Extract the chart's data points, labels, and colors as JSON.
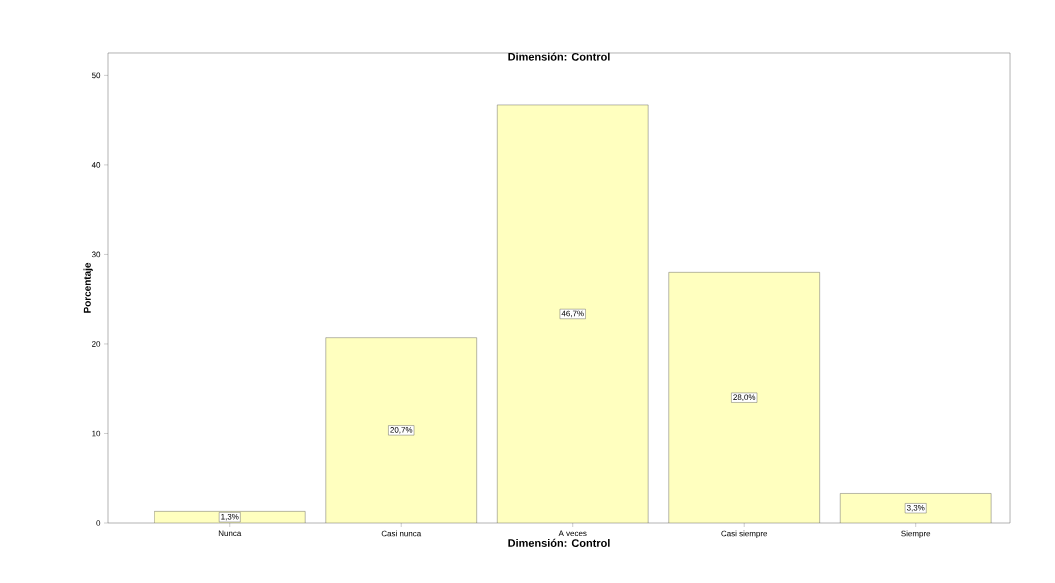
{
  "chart_data": {
    "type": "bar",
    "title": "Dimensión: Control",
    "xlabel": "Dimensión: Control",
    "ylabel": "Porcentaje",
    "categories": [
      "Nunca",
      "Casi nunca",
      "A veces",
      "Casi siempre",
      "Siempre"
    ],
    "values": [
      1.3,
      20.7,
      46.7,
      28.0,
      3.3
    ],
    "value_labels": [
      "1,3%",
      "20,7%",
      "46,7%",
      "28,0%",
      "3,3%"
    ],
    "color": "#ffffbf",
    "ylim": [
      0,
      52.5
    ],
    "yticks": [
      0,
      10,
      20,
      30,
      40,
      50
    ],
    "grid": false
  }
}
